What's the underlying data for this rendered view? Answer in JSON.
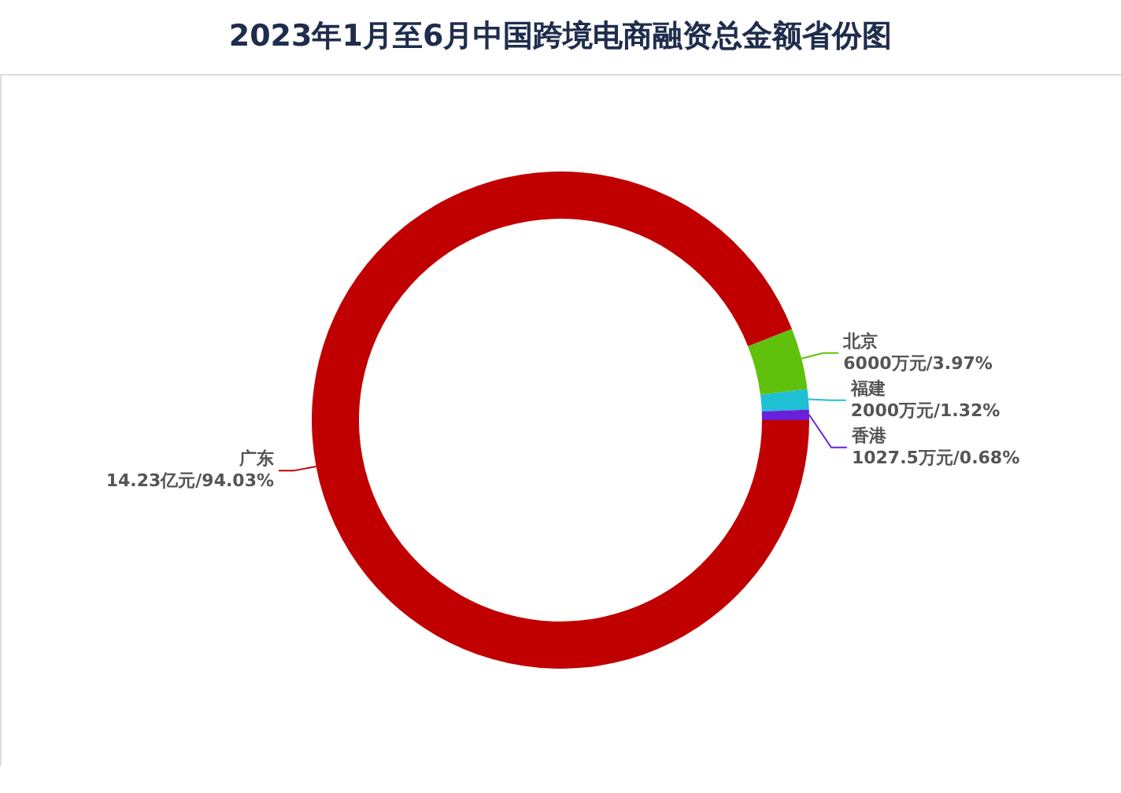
{
  "chart_data": {
    "type": "donut",
    "title": "2023年1月至6月中国跨境电商融资总金额省份图",
    "categories": [
      "广东",
      "北京",
      "福建",
      "香港"
    ],
    "values": [
      94.03,
      3.97,
      1.32,
      0.68
    ],
    "value_labels": [
      "14.23亿元/94.03%",
      "6000万元/3.97%",
      "2000万元/1.32%",
      "1027.5万元/0.68%"
    ],
    "colors": [
      "#c00000",
      "#5fc10c",
      "#1fbfd4",
      "#6a1fd8"
    ],
    "legend": false
  }
}
